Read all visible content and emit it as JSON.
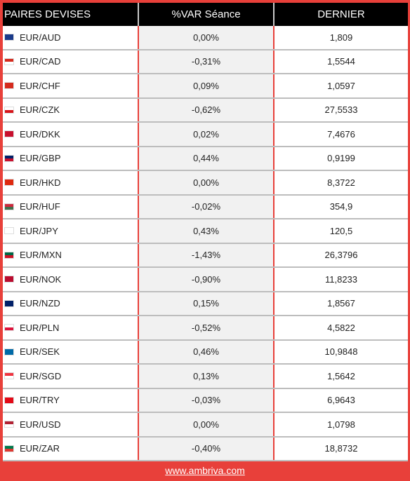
{
  "header": {
    "col_pair": "PAIRES DEVISES",
    "col_var": "%VAR Séance",
    "col_last": "DERNIER"
  },
  "rows": [
    {
      "pair": "EUR/AUD",
      "var": "0,00%",
      "last": "1,809",
      "flag": [
        "#1a3a8a",
        "#1a3a8a"
      ]
    },
    {
      "pair": "EUR/CAD",
      "var": "-0,31%",
      "last": "1,5544",
      "flag": [
        "#d52b1e",
        "#ffffff"
      ]
    },
    {
      "pair": "EUR/CHF",
      "var": "0,09%",
      "last": "1,0597",
      "flag": [
        "#d52b1e",
        "#d52b1e"
      ]
    },
    {
      "pair": "EUR/CZK",
      "var": "-0,62%",
      "last": "27,5533",
      "flag": [
        "#ffffff",
        "#d7141a"
      ]
    },
    {
      "pair": "EUR/DKK",
      "var": "0,02%",
      "last": "7,4676",
      "flag": [
        "#c8102e",
        "#c8102e"
      ]
    },
    {
      "pair": "EUR/GBP",
      "var": "0,44%",
      "last": "0,9199",
      "flag": [
        "#012169",
        "#c8102e"
      ]
    },
    {
      "pair": "EUR/HKD",
      "var": "0,00%",
      "last": "8,3722",
      "flag": [
        "#de2910",
        "#de2910"
      ]
    },
    {
      "pair": "EUR/HUF",
      "var": "-0,02%",
      "last": "354,9",
      "flag": [
        "#cd2a3e",
        "#436f4d"
      ]
    },
    {
      "pair": "EUR/JPY",
      "var": "0,43%",
      "last": "120,5",
      "flag": [
        "#ffffff",
        "#ffffff"
      ]
    },
    {
      "pair": "EUR/MXN",
      "var": "-1,43%",
      "last": "26,3796",
      "flag": [
        "#006847",
        "#ce1126"
      ]
    },
    {
      "pair": "EUR/NOK",
      "var": "-0,90%",
      "last": "11,8233",
      "flag": [
        "#ba0c2f",
        "#ba0c2f"
      ]
    },
    {
      "pair": "EUR/NZD",
      "var": "0,15%",
      "last": "1,8567",
      "flag": [
        "#012169",
        "#012169"
      ]
    },
    {
      "pair": "EUR/PLN",
      "var": "-0,52%",
      "last": "4,5822",
      "flag": [
        "#ffffff",
        "#dc143c"
      ]
    },
    {
      "pair": "EUR/SEK",
      "var": "0,46%",
      "last": "10,9848",
      "flag": [
        "#006aa7",
        "#006aa7"
      ]
    },
    {
      "pair": "EUR/SGD",
      "var": "0,13%",
      "last": "1,5642",
      "flag": [
        "#ef3340",
        "#ffffff"
      ]
    },
    {
      "pair": "EUR/TRY",
      "var": "-0,03%",
      "last": "6,9643",
      "flag": [
        "#e30a17",
        "#e30a17"
      ]
    },
    {
      "pair": "EUR/USD",
      "var": "0,00%",
      "last": "1,0798",
      "flag": [
        "#b22234",
        "#ffffff"
      ]
    },
    {
      "pair": "EUR/ZAR",
      "var": "-0,40%",
      "last": "18,8732",
      "flag": [
        "#007a4d",
        "#de3831"
      ]
    }
  ],
  "footer": {
    "link": "www.ambriva.com"
  }
}
